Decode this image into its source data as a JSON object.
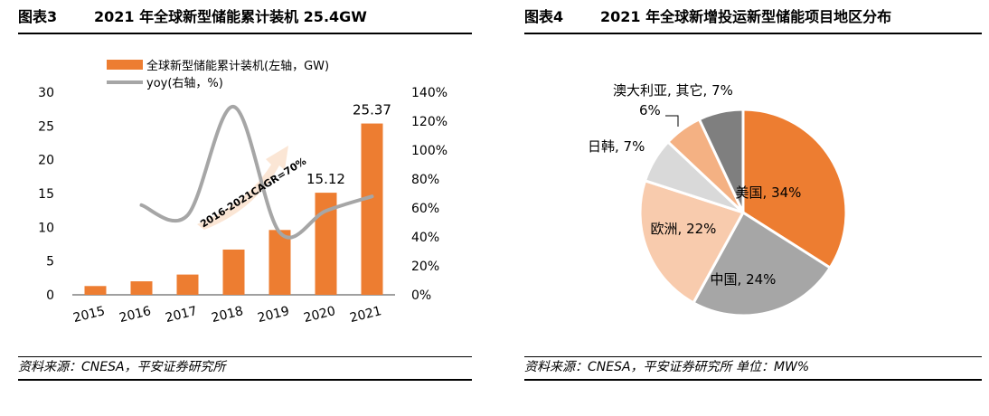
{
  "left": {
    "fig_label": "图表3",
    "title": "2021 年全球新型储能累计装机 25.4GW",
    "source": "资料来源：CNESA，平安证券研究所"
  },
  "right": {
    "fig_label": "图表4",
    "title": "2021 年全球新增投运新型储能项目地区分布",
    "source": "资料来源：CNESA，平安证券研究所  单位：MW%"
  },
  "chart_data": [
    {
      "type": "bar",
      "categories": [
        "2015",
        "2016",
        "2017",
        "2018",
        "2019",
        "2020",
        "2021"
      ],
      "series": [
        {
          "name": "全球新型储能累计装机(左轴，GW)",
          "type": "bar",
          "axis": "left",
          "color": "#ED7D31",
          "values": [
            1.3,
            2.0,
            3.0,
            6.7,
            9.6,
            15.12,
            25.37
          ],
          "data_labels": {
            "5": "15.12",
            "6": "25.37"
          }
        },
        {
          "name": "yoy(右轴，%)",
          "type": "line",
          "axis": "right",
          "color": "#A6A6A6",
          "values": [
            null,
            62,
            55,
            130,
            43,
            58,
            68
          ]
        }
      ],
      "y_left": {
        "range": [
          0,
          30
        ],
        "ticks": [
          "0",
          "5",
          "10",
          "15",
          "20",
          "25",
          "30"
        ]
      },
      "y_right": {
        "range": [
          0,
          140
        ],
        "ticks": [
          "0%",
          "20%",
          "40%",
          "60%",
          "80%",
          "100%",
          "120%",
          "140%"
        ]
      },
      "annotation": "2016-2021CAGR=70%",
      "legend_position": "top",
      "grid": false
    },
    {
      "type": "pie",
      "slices": [
        {
          "label": "美国, 34%",
          "value": 34,
          "color": "#ED7D31"
        },
        {
          "label": "中国, 24%",
          "value": 24,
          "color": "#A6A6A6"
        },
        {
          "label": "欧洲, 22%",
          "value": 22,
          "color": "#F8CBAD"
        },
        {
          "label": "日韩, 7%",
          "value": 7,
          "color": "#D9D9D9"
        },
        {
          "label": "6%",
          "value": 6,
          "color": "#F4B183"
        },
        {
          "label": "澳大利亚, 其它, 7%",
          "value": 7,
          "color": "#7F7F7F"
        }
      ]
    }
  ]
}
